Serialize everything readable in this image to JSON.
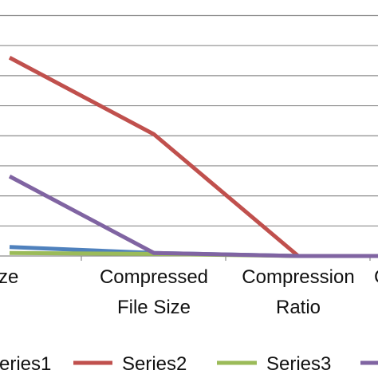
{
  "chart_data": {
    "type": "line",
    "categories": [
      "e size",
      "Compressed\nFile Size",
      "Compression\nRatio",
      "C"
    ],
    "series": [
      {
        "name": "Series1",
        "color": "#4f81bd",
        "values": [
          0.3,
          0.1,
          0.0,
          0.0
        ]
      },
      {
        "name": "Series2",
        "color": "#c0504d",
        "values": [
          6.6,
          4.05,
          0.0,
          0.0
        ]
      },
      {
        "name": "Series3",
        "color": "#9bbb59",
        "values": [
          0.1,
          0.07,
          0.0,
          0.0
        ]
      },
      {
        "name": "",
        "color": "#8064a2",
        "values": [
          2.65,
          0.1,
          0.0,
          0.0
        ]
      }
    ],
    "ylim": [
      0,
      8
    ],
    "y_gridlines": [
      0,
      1,
      2,
      3,
      4,
      5,
      6,
      7,
      8
    ],
    "grid": true,
    "legend": {
      "position": "bottom",
      "labels": [
        "eries1",
        "Series2",
        "Series3",
        ""
      ]
    }
  }
}
